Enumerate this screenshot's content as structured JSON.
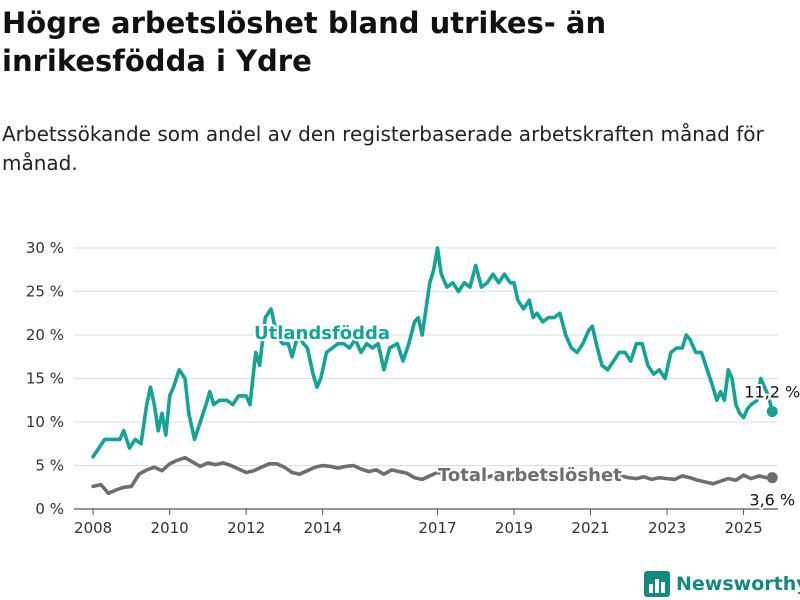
{
  "header": {
    "title": "Högre arbetslöshet bland utrikes- än inrikesfödda i Ydre",
    "subtitle": "Arbetssökande som andel av den registerbaserade arbetskraften månad för månad."
  },
  "brand": {
    "name": "Newsworthy",
    "logo_icon": "bar-chart-logo-icon"
  },
  "chart_data": {
    "type": "line",
    "title": "Högre arbetslöshet bland utrikes- än inrikesfödda i Ydre",
    "subtitle": "Arbetssökande som andel av den registerbaserade arbetskraften månad för månad.",
    "xlabel": "",
    "ylabel": "",
    "ylim": [
      0,
      30
    ],
    "xlim": [
      2007.5,
      2025.9
    ],
    "y_ticks": [
      0,
      5,
      10,
      15,
      20,
      25,
      30
    ],
    "y_tick_labels": [
      "0 %",
      "5 %",
      "10 %",
      "15 %",
      "20 %",
      "25 %",
      "30 %"
    ],
    "x_ticks": [
      2008,
      2010,
      2012,
      2014,
      2017,
      2019,
      2021,
      2023,
      2025
    ],
    "x_tick_labels": [
      "2008",
      "2010",
      "2012",
      "2014",
      "2017",
      "2019",
      "2021",
      "2023",
      "2025"
    ],
    "grid": "horizontal",
    "series": [
      {
        "name": "Utlandsfödda",
        "color": "#14a394",
        "end_label": "11,2 %",
        "points": [
          [
            2008.0,
            6
          ],
          [
            2008.15,
            7
          ],
          [
            2008.3,
            8
          ],
          [
            2008.5,
            8
          ],
          [
            2008.7,
            8
          ],
          [
            2008.8,
            9
          ],
          [
            2008.95,
            7
          ],
          [
            2009.1,
            8
          ],
          [
            2009.25,
            7.5
          ],
          [
            2009.4,
            12
          ],
          [
            2009.5,
            14
          ],
          [
            2009.6,
            12
          ],
          [
            2009.7,
            9
          ],
          [
            2009.8,
            11
          ],
          [
            2009.9,
            8.5
          ],
          [
            2010.0,
            13
          ],
          [
            2010.1,
            14
          ],
          [
            2010.25,
            16
          ],
          [
            2010.4,
            15
          ],
          [
            2010.5,
            11
          ],
          [
            2010.65,
            8
          ],
          [
            2010.8,
            10
          ],
          [
            2010.95,
            12
          ],
          [
            2011.05,
            13.5
          ],
          [
            2011.15,
            12
          ],
          [
            2011.3,
            12.5
          ],
          [
            2011.5,
            12.5
          ],
          [
            2011.65,
            12
          ],
          [
            2011.8,
            13
          ],
          [
            2012.0,
            13
          ],
          [
            2012.1,
            12
          ],
          [
            2012.25,
            18
          ],
          [
            2012.35,
            16.5
          ],
          [
            2012.5,
            22
          ],
          [
            2012.65,
            23
          ],
          [
            2012.8,
            20
          ],
          [
            2012.95,
            19
          ],
          [
            2013.1,
            19
          ],
          [
            2013.2,
            17.5
          ],
          [
            2013.35,
            20
          ],
          [
            2013.5,
            19
          ],
          [
            2013.6,
            18.5
          ],
          [
            2013.75,
            15.5
          ],
          [
            2013.85,
            14
          ],
          [
            2013.95,
            15
          ],
          [
            2014.1,
            18
          ],
          [
            2014.25,
            18.5
          ],
          [
            2014.4,
            19
          ],
          [
            2014.55,
            19
          ],
          [
            2014.7,
            18.5
          ],
          [
            2014.85,
            19.5
          ],
          [
            2015.0,
            18
          ],
          [
            2015.15,
            19
          ],
          [
            2015.3,
            18.5
          ],
          [
            2015.45,
            19
          ],
          [
            2015.6,
            16
          ],
          [
            2015.75,
            18.5
          ],
          [
            2015.95,
            19
          ],
          [
            2016.1,
            17
          ],
          [
            2016.25,
            19
          ],
          [
            2016.4,
            21.5
          ],
          [
            2016.5,
            22
          ],
          [
            2016.6,
            20
          ],
          [
            2016.7,
            23
          ],
          [
            2016.8,
            26
          ],
          [
            2016.9,
            27.5
          ],
          [
            2017.0,
            30
          ],
          [
            2017.1,
            27
          ],
          [
            2017.25,
            25.5
          ],
          [
            2017.4,
            26
          ],
          [
            2017.55,
            25
          ],
          [
            2017.7,
            26
          ],
          [
            2017.85,
            25.5
          ],
          [
            2018.0,
            28
          ],
          [
            2018.15,
            25.5
          ],
          [
            2018.3,
            26
          ],
          [
            2018.45,
            27
          ],
          [
            2018.6,
            26
          ],
          [
            2018.75,
            27
          ],
          [
            2018.9,
            26
          ],
          [
            2019.0,
            26
          ],
          [
            2019.1,
            24
          ],
          [
            2019.25,
            23
          ],
          [
            2019.4,
            24
          ],
          [
            2019.5,
            22
          ],
          [
            2019.6,
            22.5
          ],
          [
            2019.75,
            21.5
          ],
          [
            2019.9,
            22
          ],
          [
            2020.05,
            22
          ],
          [
            2020.2,
            22.5
          ],
          [
            2020.35,
            20
          ],
          [
            2020.5,
            18.5
          ],
          [
            2020.65,
            18
          ],
          [
            2020.8,
            19
          ],
          [
            2020.95,
            20.5
          ],
          [
            2021.05,
            21
          ],
          [
            2021.15,
            19
          ],
          [
            2021.3,
            16.5
          ],
          [
            2021.45,
            16
          ],
          [
            2021.6,
            17
          ],
          [
            2021.75,
            18
          ],
          [
            2021.9,
            18
          ],
          [
            2022.05,
            17
          ],
          [
            2022.2,
            19
          ],
          [
            2022.35,
            19
          ],
          [
            2022.5,
            16.5
          ],
          [
            2022.65,
            15.5
          ],
          [
            2022.8,
            16
          ],
          [
            2022.95,
            15
          ],
          [
            2023.1,
            18
          ],
          [
            2023.25,
            18.5
          ],
          [
            2023.4,
            18.5
          ],
          [
            2023.5,
            20
          ],
          [
            2023.6,
            19.5
          ],
          [
            2023.75,
            18
          ],
          [
            2023.9,
            18
          ],
          [
            2024.05,
            16
          ],
          [
            2024.2,
            14
          ],
          [
            2024.3,
            12.5
          ],
          [
            2024.4,
            13.5
          ],
          [
            2024.5,
            12.5
          ],
          [
            2024.6,
            16
          ],
          [
            2024.7,
            15
          ],
          [
            2024.8,
            12
          ],
          [
            2024.9,
            11
          ],
          [
            2025.0,
            10.5
          ],
          [
            2025.1,
            11.5
          ],
          [
            2025.2,
            12
          ],
          [
            2025.35,
            12.5
          ],
          [
            2025.45,
            15
          ],
          [
            2025.55,
            14
          ],
          [
            2025.65,
            13
          ],
          [
            2025.75,
            11.2
          ]
        ]
      },
      {
        "name": "Total arbetslöshet",
        "color": "#6e6e72",
        "end_label": "3,6 %",
        "points": [
          [
            2008.0,
            2.6
          ],
          [
            2008.2,
            2.8
          ],
          [
            2008.4,
            1.8
          ],
          [
            2008.6,
            2.2
          ],
          [
            2008.8,
            2.5
          ],
          [
            2009.0,
            2.6
          ],
          [
            2009.2,
            4
          ],
          [
            2009.4,
            4.5
          ],
          [
            2009.6,
            4.8
          ],
          [
            2009.8,
            4.4
          ],
          [
            2010.0,
            5.2
          ],
          [
            2010.2,
            5.6
          ],
          [
            2010.4,
            5.9
          ],
          [
            2010.6,
            5.4
          ],
          [
            2010.8,
            4.9
          ],
          [
            2011.0,
            5.3
          ],
          [
            2011.2,
            5.1
          ],
          [
            2011.4,
            5.3
          ],
          [
            2011.6,
            5.0
          ],
          [
            2011.8,
            4.6
          ],
          [
            2012.0,
            4.2
          ],
          [
            2012.2,
            4.4
          ],
          [
            2012.4,
            4.8
          ],
          [
            2012.6,
            5.2
          ],
          [
            2012.8,
            5.2
          ],
          [
            2013.0,
            4.8
          ],
          [
            2013.2,
            4.2
          ],
          [
            2013.4,
            4.0
          ],
          [
            2013.6,
            4.4
          ],
          [
            2013.8,
            4.8
          ],
          [
            2014.0,
            5.0
          ],
          [
            2014.2,
            4.9
          ],
          [
            2014.4,
            4.7
          ],
          [
            2014.6,
            4.9
          ],
          [
            2014.8,
            5.0
          ],
          [
            2015.0,
            4.6
          ],
          [
            2015.2,
            4.3
          ],
          [
            2015.4,
            4.5
          ],
          [
            2015.6,
            4.0
          ],
          [
            2015.8,
            4.5
          ],
          [
            2016.0,
            4.3
          ],
          [
            2016.2,
            4.1
          ],
          [
            2016.4,
            3.6
          ],
          [
            2016.6,
            3.4
          ],
          [
            2016.8,
            3.8
          ],
          [
            2017.0,
            4.2
          ],
          [
            2017.2,
            4.0
          ],
          [
            2017.4,
            3.6
          ],
          [
            2017.6,
            3.9
          ],
          [
            2017.8,
            3.5
          ],
          [
            2018.0,
            3.6
          ],
          [
            2018.2,
            3.4
          ],
          [
            2018.4,
            3.8
          ],
          [
            2018.6,
            3.5
          ],
          [
            2018.8,
            3.3
          ],
          [
            2019.0,
            3.4
          ],
          [
            2019.2,
            3.9
          ],
          [
            2019.4,
            3.6
          ],
          [
            2019.6,
            3.5
          ],
          [
            2019.8,
            3.8
          ],
          [
            2020.0,
            4.0
          ],
          [
            2020.2,
            4.2
          ],
          [
            2020.4,
            4.1
          ],
          [
            2020.6,
            3.9
          ],
          [
            2020.8,
            3.7
          ],
          [
            2021.0,
            3.9
          ],
          [
            2021.2,
            3.7
          ],
          [
            2021.4,
            3.5
          ],
          [
            2021.6,
            3.6
          ],
          [
            2021.8,
            3.8
          ],
          [
            2022.0,
            3.6
          ],
          [
            2022.2,
            3.5
          ],
          [
            2022.4,
            3.7
          ],
          [
            2022.6,
            3.4
          ],
          [
            2022.8,
            3.6
          ],
          [
            2023.0,
            3.5
          ],
          [
            2023.2,
            3.4
          ],
          [
            2023.4,
            3.8
          ],
          [
            2023.6,
            3.6
          ],
          [
            2023.8,
            3.3
          ],
          [
            2024.0,
            3.1
          ],
          [
            2024.2,
            2.9
          ],
          [
            2024.4,
            3.2
          ],
          [
            2024.6,
            3.5
          ],
          [
            2024.8,
            3.3
          ],
          [
            2025.0,
            3.9
          ],
          [
            2025.2,
            3.5
          ],
          [
            2025.4,
            3.8
          ],
          [
            2025.6,
            3.6
          ],
          [
            2025.75,
            3.6
          ]
        ]
      }
    ]
  }
}
